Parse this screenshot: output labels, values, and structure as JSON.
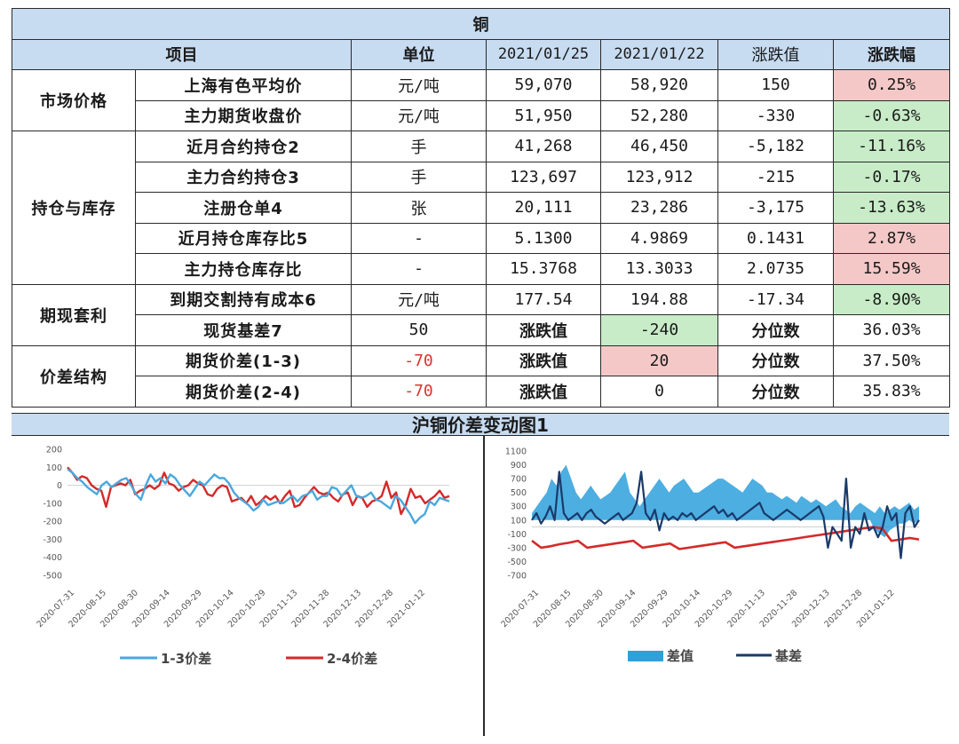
{
  "title": "铜",
  "headers": {
    "item": "项目",
    "unit": "单位",
    "date1": "2021/01/25",
    "date2": "2021/01/22",
    "change": "涨跌值",
    "pct": "涨跌幅"
  },
  "sections": [
    {
      "category": "市场价格",
      "rows": [
        {
          "item": "上海有色平均价",
          "unit": "元/吨",
          "v1": "59,070",
          "v2": "58,920",
          "chg": "150",
          "pct": "0.25%"
        },
        {
          "item": "主力期货收盘价",
          "unit": "元/吨",
          "v1": "51,950",
          "v2": "52,280",
          "chg": "-330",
          "pct": "-0.63%"
        }
      ]
    },
    {
      "category": "持仓与库存",
      "rows": [
        {
          "item": "近月合约持仓2",
          "unit": "手",
          "v1": "41,268",
          "v2": "46,450",
          "chg": "-5,182",
          "pct": "-11.16%"
        },
        {
          "item": "主力合约持仓3",
          "unit": "手",
          "v1": "123,697",
          "v2": "123,912",
          "chg": "-215",
          "pct": "-0.17%"
        },
        {
          "item": "注册仓单4",
          "unit": "张",
          "v1": "20,111",
          "v2": "23,286",
          "chg": "-3,175",
          "pct": "-13.63%"
        },
        {
          "item": "近月持仓库存比5",
          "unit": "-",
          "v1": "5.1300",
          "v2": "4.9869",
          "chg": "0.1431",
          "pct": "2.87%"
        },
        {
          "item": "主力持仓库存比",
          "unit": "-",
          "v1": "15.3768",
          "v2": "13.3033",
          "chg": "2.0735",
          "pct": "15.59%"
        }
      ]
    },
    {
      "category": "期现套利",
      "rows": [
        {
          "item": "到期交割持有成本6",
          "unit": "元/吨",
          "v1": "177.54",
          "v2": "194.88",
          "chg": "-17.34",
          "pct": "-8.90%"
        },
        {
          "item": "现货基差7",
          "unit": "50",
          "v1": "涨跌值",
          "v2": "-240",
          "chg": "分位数",
          "pct": "36.03%"
        }
      ]
    },
    {
      "category": "价差结构",
      "rows": [
        {
          "item": "期货价差(1-3)",
          "unit": "-70",
          "v1": "涨跌值",
          "v2": "20",
          "chg": "分位数",
          "pct": "37.50%"
        },
        {
          "item": "期货价差(2-4)",
          "unit": "-70",
          "v1": "涨跌值",
          "v2": "0",
          "chg": "分位数",
          "pct": "35.83%"
        }
      ]
    }
  ],
  "chart_section_title": "沪铜价差变动图1",
  "colors": {
    "header_bg": "#c7dcf1",
    "pos_bg": "#f5c8c8",
    "neg_bg": "#c8ecc8",
    "line_1_3": "#4aa8dc",
    "line_2_4": "#d42a2a",
    "area": "#2ea0dc",
    "basis": "#1a3a6a",
    "negative_text": "#e03030"
  },
  "chart_data": [
    {
      "type": "line",
      "ylim": [
        -500,
        200
      ],
      "yticks": [
        "200",
        "100",
        "0",
        "-100",
        "-200",
        "-300",
        "-400",
        "-500"
      ],
      "xticks": [
        "2020-07-31",
        "2020-08-15",
        "2020-08-30",
        "2020-09-14",
        "2020-09-29",
        "2020-10-14",
        "2020-10-29",
        "2020-11-13",
        "2020-11-28",
        "2020-12-13",
        "2020-12-28",
        "2021-01-12"
      ],
      "series": [
        {
          "name": "1-3价差",
          "values": [
            90,
            70,
            40,
            20,
            -10,
            -30,
            -50,
            0,
            20,
            -10,
            10,
            30,
            40,
            0,
            -50,
            -80,
            0,
            60,
            20,
            40,
            10,
            60,
            40,
            0,
            -30,
            -60,
            -20,
            20,
            0,
            30,
            60,
            40,
            40,
            10,
            -40,
            -70,
            -90,
            -110,
            -140,
            -120,
            -80,
            -110,
            -100,
            -90,
            -100,
            -80,
            -60,
            -90,
            -60,
            -50,
            -30,
            -80,
            -60,
            -60,
            -10,
            -20,
            -60,
            -30,
            0,
            -60,
            -70,
            -60,
            -40,
            -80,
            -90,
            -110,
            -130,
            -60,
            -80,
            -120,
            -160,
            -210,
            -180,
            -160,
            -90,
            -110,
            -70,
            -80,
            -90
          ]
        },
        {
          "name": "2-4价差",
          "values": [
            100,
            70,
            30,
            50,
            40,
            0,
            -20,
            -30,
            -120,
            -10,
            0,
            10,
            0,
            30,
            -50,
            -30,
            -20,
            0,
            -20,
            0,
            70,
            10,
            0,
            -30,
            -10,
            0,
            30,
            10,
            0,
            -50,
            -60,
            -20,
            0,
            -10,
            -90,
            -80,
            -70,
            -100,
            -60,
            -110,
            -90,
            -60,
            -80,
            -60,
            -100,
            -60,
            -30,
            -120,
            -110,
            -70,
            -40,
            -10,
            -40,
            -50,
            -40,
            -70,
            -90,
            -50,
            -40,
            -110,
            -60,
            -70,
            -120,
            -90,
            -80,
            -60,
            20,
            -70,
            -40,
            -160,
            -110,
            -20,
            -70,
            -60,
            -100,
            -80,
            -60,
            -30,
            -70,
            -60
          ]
        }
      ]
    },
    {
      "type": "area",
      "ylim": [
        -700,
        1100
      ],
      "yticks": [
        "1100",
        "900",
        "700",
        "500",
        "300",
        "100",
        "-100",
        "-300",
        "-500",
        "-700"
      ],
      "xticks": [
        "2020-07-31",
        "2020-08-15",
        "2020-08-30",
        "2020-09-14",
        "2020-09-29",
        "2020-10-14",
        "2020-10-29",
        "2020-11-13",
        "2020-11-28",
        "2020-12-13",
        "2020-12-28",
        "2021-01-12"
      ],
      "series": [
        {
          "name": "差值",
          "upper": [
            200,
            300,
            400,
            500,
            700,
            600,
            800,
            900,
            700,
            500,
            400,
            500,
            600,
            500,
            400,
            450,
            500,
            600,
            700,
            800,
            500,
            400,
            300,
            400,
            500,
            600,
            700,
            600,
            500,
            600,
            650,
            700,
            600,
            500,
            500,
            550,
            600,
            650,
            700,
            700,
            650,
            600,
            550,
            500,
            600,
            700,
            650,
            600,
            500,
            500,
            450,
            400,
            450,
            400,
            350,
            450,
            400,
            350,
            400,
            350,
            300,
            350,
            400,
            300,
            250,
            200,
            300,
            350,
            300,
            250,
            200,
            300,
            200,
            250,
            300,
            250,
            300,
            350,
            250,
            300
          ],
          "lower": [
            100,
            100,
            100,
            100,
            100,
            100,
            100,
            100,
            100,
            100,
            100,
            100,
            100,
            100,
            100,
            100,
            100,
            100,
            100,
            100,
            100,
            100,
            100,
            100,
            100,
            100,
            100,
            100,
            100,
            100,
            100,
            100,
            100,
            100,
            100,
            100,
            100,
            100,
            100,
            100,
            100,
            100,
            100,
            100,
            100,
            100,
            100,
            100,
            100,
            100,
            100,
            100,
            100,
            100,
            100,
            100,
            100,
            100,
            100,
            100,
            100,
            100,
            100,
            100,
            100,
            100,
            100,
            100,
            100,
            100,
            -50,
            -100,
            -150,
            -50,
            0,
            50,
            50,
            100,
            50,
            100
          ]
        },
        {
          "name": "基差",
          "values": [
            100,
            200,
            50,
            150,
            300,
            100,
            800,
            200,
            100,
            150,
            200,
            100,
            200,
            250,
            150,
            100,
            50,
            100,
            150,
            200,
            100,
            150,
            200,
            350,
            800,
            200,
            100,
            250,
            -50,
            200,
            100,
            150,
            100,
            200,
            150,
            200,
            100,
            150,
            200,
            250,
            300,
            200,
            250,
            150,
            200,
            100,
            150,
            200,
            250,
            300,
            350,
            200,
            150,
            100,
            150,
            200,
            250,
            200,
            150,
            100,
            150,
            200,
            250,
            300,
            150,
            -300,
            0,
            -100,
            -200,
            700,
            -300,
            0,
            -100,
            200,
            -50,
            0,
            -150,
            0,
            300,
            100,
            200,
            -450,
            200,
            300,
            0,
            100
          ]
        },
        {
          "name": "",
          "values": [
            -200,
            -300,
            -280,
            -250,
            -230,
            -200,
            -300,
            -280,
            -260,
            -240,
            -220,
            -200,
            -300,
            -280,
            -260,
            -240,
            -320,
            -300,
            -280,
            -260,
            -240,
            -220,
            -300,
            -280,
            -260,
            -240,
            -220,
            -200,
            -180,
            -160,
            -140,
            -120,
            -100,
            -80,
            -60,
            -40,
            -20,
            0,
            -20,
            -200,
            -180,
            -160,
            -180
          ]
        }
      ]
    }
  ]
}
